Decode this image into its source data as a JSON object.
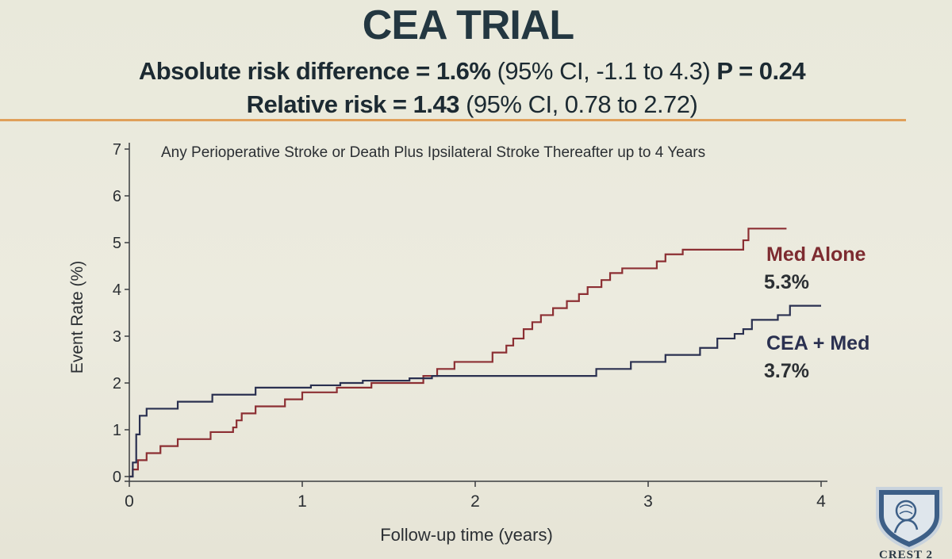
{
  "slide": {
    "title": "CEA TRIAL",
    "ard_label": "Absolute risk difference = ",
    "ard_value": "1.6%",
    "ard_ci": " (95% CI, -1.1 to 4.3) ",
    "ard_p": "P = 0.24",
    "rr_label": "Relative risk =  ",
    "rr_value": "1.43",
    "rr_ci": " (95% CI, 0.78 to 2.72)",
    "logo_text": "CREST 2"
  },
  "colors": {
    "med_alone": "#8c2f33",
    "cea_med": "#2a3050",
    "divider": "#e0a05a"
  },
  "chart_data": {
    "type": "line",
    "title": "Any Perioperative Stroke or Death Plus Ipsilateral Stroke Thereafter up to 4 Years",
    "xlabel": "Follow-up time (years)",
    "ylabel": "Event Rate (%)",
    "xlim": [
      0,
      4
    ],
    "ylim": [
      0,
      7
    ],
    "x_ticks": [
      "0",
      "1",
      "2",
      "3",
      "4"
    ],
    "y_ticks": [
      "0",
      "1",
      "2",
      "3",
      "4",
      "5",
      "6",
      "7"
    ],
    "step": true,
    "series": [
      {
        "name": "Med Alone",
        "end_label": "5.3%",
        "x": [
          0,
          0.02,
          0.05,
          0.1,
          0.18,
          0.28,
          0.47,
          0.6,
          0.62,
          0.65,
          0.73,
          0.9,
          1.0,
          1.2,
          1.4,
          1.7,
          1.78,
          1.88,
          2.1,
          2.18,
          2.22,
          2.28,
          2.33,
          2.38,
          2.45,
          2.53,
          2.6,
          2.65,
          2.73,
          2.78,
          2.85,
          3.05,
          3.1,
          3.2,
          3.55,
          3.58,
          3.8
        ],
        "y": [
          0,
          0.15,
          0.35,
          0.5,
          0.65,
          0.8,
          0.95,
          1.05,
          1.2,
          1.35,
          1.5,
          1.65,
          1.8,
          1.9,
          2.0,
          2.15,
          2.3,
          2.45,
          2.65,
          2.8,
          2.95,
          3.15,
          3.3,
          3.45,
          3.6,
          3.75,
          3.9,
          4.05,
          4.2,
          4.35,
          4.45,
          4.6,
          4.75,
          4.85,
          5.05,
          5.3,
          5.3
        ]
      },
      {
        "name": "CEA + Med",
        "end_label": "3.7%",
        "x": [
          0,
          0.02,
          0.04,
          0.06,
          0.1,
          0.28,
          0.48,
          0.73,
          1.05,
          1.22,
          1.35,
          1.62,
          1.75,
          2.7,
          2.9,
          3.1,
          3.3,
          3.4,
          3.5,
          3.55,
          3.6,
          3.75,
          3.82,
          4.0
        ],
        "y": [
          0,
          0.3,
          0.9,
          1.3,
          1.45,
          1.6,
          1.75,
          1.9,
          1.95,
          2.0,
          2.05,
          2.1,
          2.15,
          2.3,
          2.45,
          2.6,
          2.75,
          2.95,
          3.05,
          3.15,
          3.35,
          3.45,
          3.65,
          3.65
        ]
      }
    ]
  }
}
